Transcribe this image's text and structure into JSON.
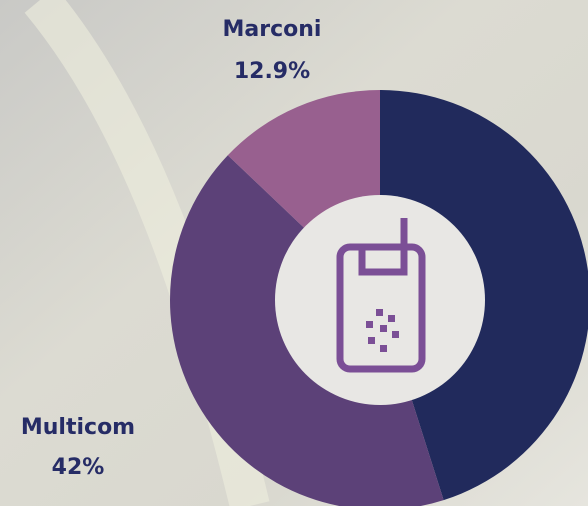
{
  "chart_data": {
    "type": "donut",
    "categories": [
      null,
      "Multicom",
      "Marconi"
    ],
    "values": [
      45.1,
      42,
      12.9
    ],
    "value_labels": [
      null,
      "42%",
      "12.9%"
    ],
    "colors": [
      "#212a5c",
      "#5c4178",
      "#98608f"
    ]
  }
}
